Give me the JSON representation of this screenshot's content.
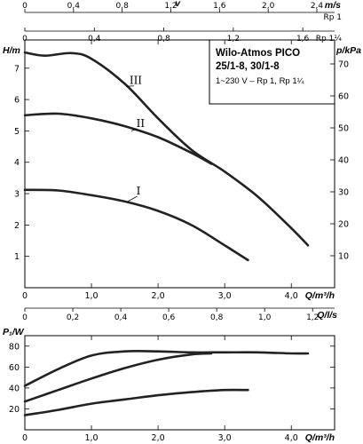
{
  "chart_data": [
    {
      "type": "line",
      "title": "Wilo-Atmos PICO",
      "models": "25/1-8, 30/1-8",
      "subtitle": "1~230 V – Rp 1, Rp 1¼",
      "xlabel": "Q/m³/h",
      "ylabel": "H/m",
      "y2label": "p/kPa",
      "xlim": [
        0,
        4.65
      ],
      "ylim": [
        0,
        7.9
      ],
      "y2lim": [
        0,
        77.5
      ],
      "x_ticks": [
        "0",
        "1,0",
        "2,0",
        "3,0",
        "4,0"
      ],
      "x_tick_values": [
        0,
        1,
        2,
        3,
        4
      ],
      "y_ticks": [
        "1",
        "2",
        "3",
        "4",
        "5",
        "6",
        "7"
      ],
      "y_tick_values": [
        1,
        2,
        3,
        4,
        5,
        6,
        7
      ],
      "y2_ticks": [
        "10",
        "20",
        "30",
        "40",
        "50",
        "60",
        "70"
      ],
      "y2_tick_values": [
        10,
        20,
        30,
        40,
        50,
        60,
        70
      ],
      "top_axes": [
        {
          "label": "v",
          "unit": "m/s",
          "suffix": "Rp 1",
          "ticks": [
            "0",
            "0,4",
            "0,8",
            "1,2",
            "1,6",
            "2,0",
            "2,4"
          ],
          "tick_values": [
            0,
            0.4,
            0.8,
            1.2,
            1.6,
            2.0,
            2.4
          ],
          "scale": 0.5475
        },
        {
          "label": "",
          "unit": "",
          "suffix": "Rp 1¼",
          "ticks": [
            "0",
            "0,4",
            "0,8",
            "1,2",
            "1,6",
            "2,0"
          ],
          "tick_values": [
            0,
            0.4,
            0.8,
            1.2,
            1.6,
            2.0
          ],
          "scale": 0.3835
        }
      ],
      "grid": false,
      "series": [
        {
          "name": "III",
          "x": [
            0,
            0.3,
            0.7,
            1.0,
            1.5,
            2.0,
            2.5,
            3.0,
            3.5,
            4.0,
            4.25
          ],
          "y": [
            7.5,
            7.4,
            7.48,
            7.3,
            6.5,
            5.4,
            4.4,
            3.7,
            2.9,
            1.9,
            1.35
          ]
        },
        {
          "name": "II",
          "x": [
            0,
            0.5,
            1.0,
            1.5,
            2.0,
            2.5,
            2.8
          ],
          "y": [
            5.5,
            5.55,
            5.4,
            5.15,
            4.8,
            4.3,
            3.95
          ]
        },
        {
          "name": "I",
          "x": [
            0,
            0.5,
            1.0,
            1.5,
            2.0,
            2.5,
            3.0,
            3.35
          ],
          "y": [
            3.12,
            3.1,
            2.95,
            2.75,
            2.45,
            2.0,
            1.35,
            0.88
          ]
        }
      ]
    },
    {
      "type": "line",
      "xlabel": "Q/m³/h",
      "ylabel": "P₁/W",
      "xlim": [
        0,
        4.65
      ],
      "ylim": [
        0,
        90
      ],
      "x_ticks": [
        "0",
        "1,0",
        "2,0",
        "3,0",
        "4,0"
      ],
      "x_tick_values": [
        0,
        1,
        2,
        3,
        4
      ],
      "y_ticks": [
        "20",
        "40",
        "60",
        "80"
      ],
      "y_tick_values": [
        20,
        40,
        60,
        80
      ],
      "top_axis": {
        "label": "Q/l/s",
        "ticks": [
          "0",
          "0,2",
          "0,4",
          "0,6",
          "0,8",
          "1,0",
          "1,2"
        ],
        "tick_values": [
          0,
          0.2,
          0.4,
          0.6,
          0.8,
          1.0,
          1.2
        ],
        "scale": 0.27778
      },
      "grid": false,
      "series": [
        {
          "name": "III",
          "x": [
            0,
            0.5,
            1.0,
            1.5,
            2.0,
            2.5,
            3.0,
            3.5,
            4.0,
            4.25
          ],
          "y": [
            42,
            58,
            71,
            75,
            75,
            74,
            74,
            74,
            73,
            73
          ]
        },
        {
          "name": "II",
          "x": [
            0,
            0.5,
            1.0,
            1.5,
            2.0,
            2.5,
            2.8
          ],
          "y": [
            27,
            38,
            49,
            59,
            67,
            72,
            73
          ]
        },
        {
          "name": "I",
          "x": [
            0,
            0.5,
            1.0,
            1.5,
            2.0,
            2.5,
            3.0,
            3.35
          ],
          "y": [
            14,
            19,
            25,
            29,
            33,
            36,
            38,
            38
          ]
        }
      ]
    }
  ]
}
